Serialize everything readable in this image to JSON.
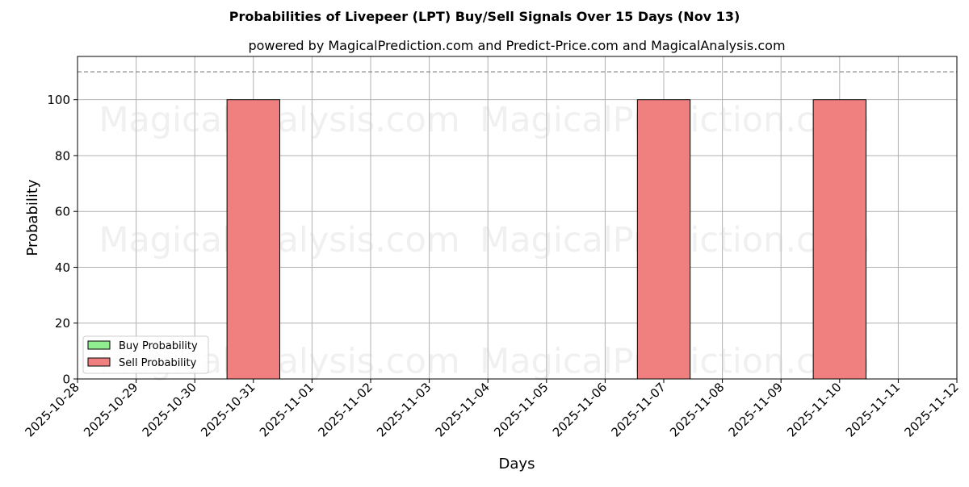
{
  "chart_data": {
    "type": "bar",
    "title": "Probabilities of Livepeer (LPT) Buy/Sell Signals Over 15 Days (Nov 13)",
    "subtitle": "powered by MagicalPrediction.com and Predict-Price.com and MagicalAnalysis.com",
    "xlabel": "Days",
    "ylabel": "Probability",
    "x_ticks": [
      "2025-10-28",
      "2025-10-29",
      "2025-10-30",
      "2025-10-31",
      "2025-11-01",
      "2025-11-02",
      "2025-11-03",
      "2025-11-04",
      "2025-11-05",
      "2025-11-06",
      "2025-11-07",
      "2025-11-08",
      "2025-11-09",
      "2025-11-10",
      "2025-11-11",
      "2025-11-12"
    ],
    "y_ticks": [
      0,
      20,
      40,
      60,
      80,
      100
    ],
    "ylim": [
      0,
      115.5
    ],
    "xlim": [
      "2025-10-28",
      "2025-11-12"
    ],
    "reference_line": 110,
    "grid": true,
    "legend_position": "lower-left",
    "series": [
      {
        "name": "Buy Probability",
        "color": "#90ee90",
        "points": []
      },
      {
        "name": "Sell Probability",
        "color": "#f08080",
        "points": [
          {
            "x": "2025-10-31",
            "value": 100
          },
          {
            "x": "2025-11-07",
            "value": 100
          },
          {
            "x": "2025-11-10",
            "value": 100
          }
        ]
      }
    ],
    "watermarks": [
      "MagicalAnalysis.com",
      "MagicalPrediction.com"
    ]
  }
}
